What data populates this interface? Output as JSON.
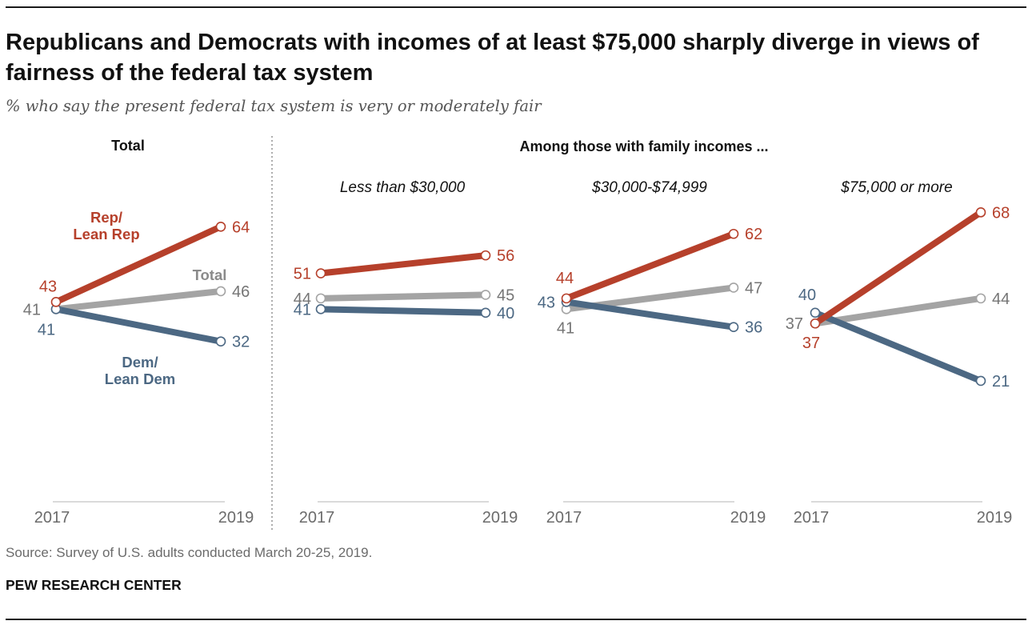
{
  "title": "Republicans and Democrats with incomes of at least $75,000 sharply diverge in views of fairness of the federal tax system",
  "subtitle": "% who say the present federal tax system is very or moderately fair",
  "section_header": "Among those with family incomes ...",
  "source": "Source: Survey of U.S. adults conducted March 20-25, 2019.",
  "footer": "PEW RESEARCH CENTER",
  "colors": {
    "rep": "#b6402b",
    "dem": "#4c6883",
    "total": "#a4a4a4",
    "text_gray": "#757575"
  },
  "series_labels": [
    {
      "series": "rep",
      "lines": [
        "Rep/",
        "Lean Rep"
      ]
    },
    {
      "series": "total",
      "lines": [
        "Total"
      ]
    },
    {
      "series": "dem",
      "lines": [
        "Dem/",
        "Lean Dem"
      ]
    }
  ],
  "chart_data": [
    {
      "type": "line",
      "title": "Total",
      "title_style": "bold",
      "x": [
        "2017",
        "2019"
      ],
      "ylim": [
        0,
        80
      ],
      "series": [
        {
          "key": "rep",
          "values": [
            43,
            64
          ]
        },
        {
          "key": "total",
          "values": [
            41,
            46
          ]
        },
        {
          "key": "dem",
          "values": [
            41,
            32
          ]
        }
      ]
    },
    {
      "type": "line",
      "title": "Less than $30,000",
      "title_style": "italic",
      "x": [
        "2017",
        "2019"
      ],
      "ylim": [
        0,
        80
      ],
      "series": [
        {
          "key": "rep",
          "values": [
            51,
            56
          ]
        },
        {
          "key": "total",
          "values": [
            44,
            45
          ]
        },
        {
          "key": "dem",
          "values": [
            41,
            40
          ]
        }
      ]
    },
    {
      "type": "line",
      "title": "$30,000-$74,999",
      "title_style": "italic",
      "x": [
        "2017",
        "2019"
      ],
      "ylim": [
        0,
        80
      ],
      "series": [
        {
          "key": "rep",
          "values": [
            44,
            62
          ]
        },
        {
          "key": "total",
          "values": [
            41,
            47
          ]
        },
        {
          "key": "dem",
          "values": [
            43,
            36
          ]
        }
      ]
    },
    {
      "type": "line",
      "title": "$75,000 or more",
      "title_style": "italic",
      "x": [
        "2017",
        "2019"
      ],
      "ylim": [
        0,
        80
      ],
      "series": [
        {
          "key": "rep",
          "values": [
            37,
            68
          ]
        },
        {
          "key": "total",
          "values": [
            37,
            44
          ]
        },
        {
          "key": "dem",
          "values": [
            40,
            21
          ]
        }
      ]
    }
  ]
}
